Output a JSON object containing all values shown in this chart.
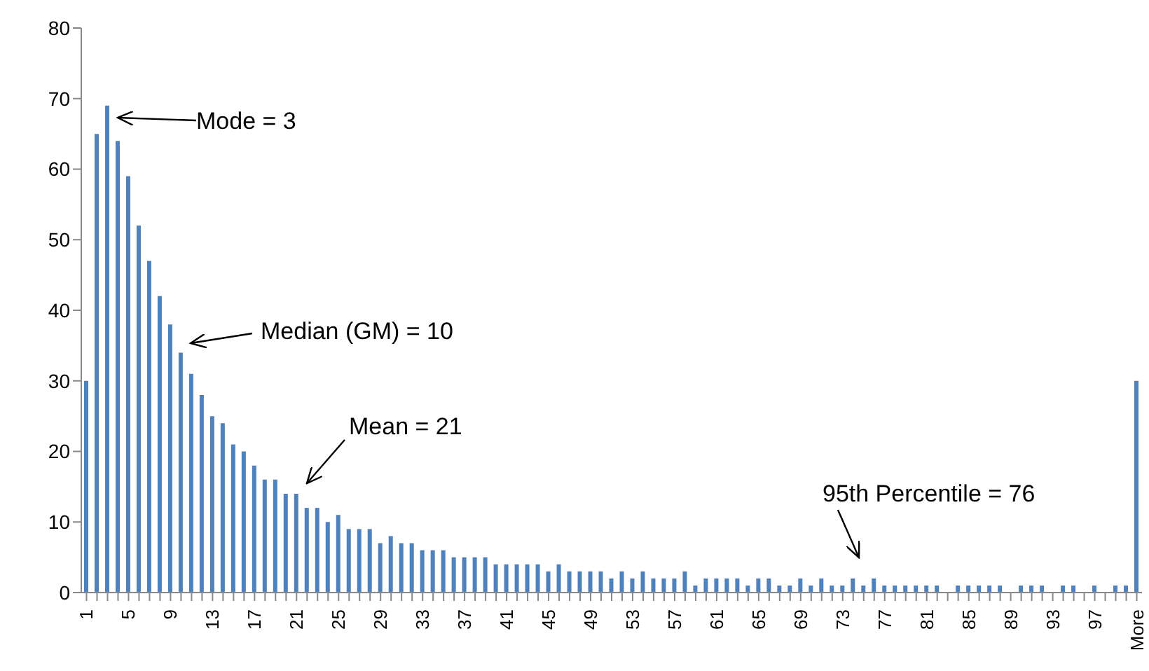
{
  "chart_data": {
    "type": "bar",
    "categories": [
      "1",
      null,
      null,
      null,
      "5",
      null,
      null,
      null,
      "9",
      null,
      null,
      null,
      "13",
      null,
      null,
      null,
      "17",
      null,
      null,
      null,
      "21",
      null,
      null,
      null,
      "25",
      null,
      null,
      null,
      "29",
      null,
      null,
      null,
      "33",
      null,
      null,
      null,
      "37",
      null,
      null,
      null,
      "41",
      null,
      null,
      null,
      "45",
      null,
      null,
      null,
      "49",
      null,
      null,
      null,
      "53",
      null,
      null,
      null,
      "57",
      null,
      null,
      null,
      "61",
      null,
      null,
      null,
      "65",
      null,
      null,
      null,
      "69",
      null,
      null,
      null,
      "73",
      null,
      null,
      null,
      "77",
      null,
      null,
      null,
      "81",
      null,
      null,
      null,
      "85",
      null,
      null,
      null,
      "89",
      null,
      null,
      null,
      "93",
      null,
      null,
      null,
      "97",
      null,
      null,
      null,
      "More"
    ],
    "values": [
      30,
      65,
      69,
      64,
      59,
      52,
      47,
      42,
      38,
      34,
      31,
      28,
      25,
      24,
      21,
      20,
      18,
      16,
      16,
      14,
      14,
      12,
      12,
      10,
      11,
      9,
      9,
      9,
      7,
      8,
      7,
      7,
      6,
      6,
      6,
      5,
      5,
      5,
      5,
      4,
      4,
      4,
      4,
      4,
      3,
      4,
      3,
      3,
      3,
      3,
      2,
      3,
      2,
      3,
      2,
      2,
      2,
      3,
      1,
      2,
      2,
      2,
      2,
      1,
      2,
      2,
      1,
      1,
      2,
      1,
      2,
      1,
      1,
      2,
      1,
      2,
      1,
      1,
      1,
      1,
      1,
      1,
      0,
      1,
      1,
      1,
      1,
      1,
      0,
      1,
      1,
      1,
      0,
      1,
      1,
      0,
      1,
      0,
      1,
      1,
      30
    ],
    "color": "#4f81bd",
    "ylim": [
      0,
      80
    ],
    "yticks": [
      0,
      10,
      20,
      30,
      40,
      50,
      60,
      70,
      80
    ],
    "grid": false,
    "legend": false,
    "annotations": [
      "Mode = 3",
      "Median (GM) = 10",
      "Mean = 21",
      "95th Percentile = 76"
    ]
  }
}
